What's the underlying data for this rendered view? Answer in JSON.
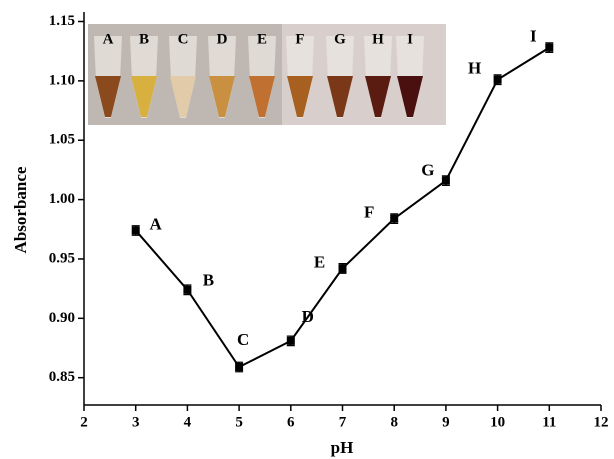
{
  "chart_data": {
    "type": "line",
    "x_label": "pH",
    "y_label": "Absorbance",
    "x": [
      3,
      4,
      5,
      6,
      7,
      8,
      9,
      10,
      11
    ],
    "series": [
      {
        "color": "#000000",
        "values": [
          0.974,
          0.924,
          0.859,
          0.881,
          0.942,
          0.984,
          1.016,
          1.101,
          1.128
        ],
        "errors": [
          0.004,
          0.004,
          0.004,
          0.004,
          0.004,
          0.004,
          0.004,
          0.004,
          0.004
        ]
      }
    ],
    "point_labels": [
      "A",
      "B",
      "C",
      "D",
      "E",
      "F",
      "G",
      "H",
      "I"
    ],
    "inset_labels": [
      "A",
      "B",
      "C",
      "D",
      "E",
      "F",
      "G",
      "H",
      "I"
    ],
    "inset_colors": [
      "#8a4a1e",
      "#d8b040",
      "#e2cba8",
      "#c89040",
      "#c07030",
      "#a86020",
      "#7a3818",
      "#5a1c10",
      "#4a1010"
    ],
    "xlim": [
      2,
      12
    ],
    "xticks": [
      2,
      3,
      4,
      5,
      6,
      7,
      8,
      9,
      10,
      11,
      12
    ],
    "ylim": [
      0.827,
      1.158
    ],
    "yticks": [
      0.85,
      {
        "value": 0.9,
        "label": "0.90"
      },
      0.95,
      {
        "value": 1.0,
        "label": "1.00"
      },
      1.05,
      {
        "value": 1.1,
        "label": "1.10"
      },
      1.15
    ]
  }
}
